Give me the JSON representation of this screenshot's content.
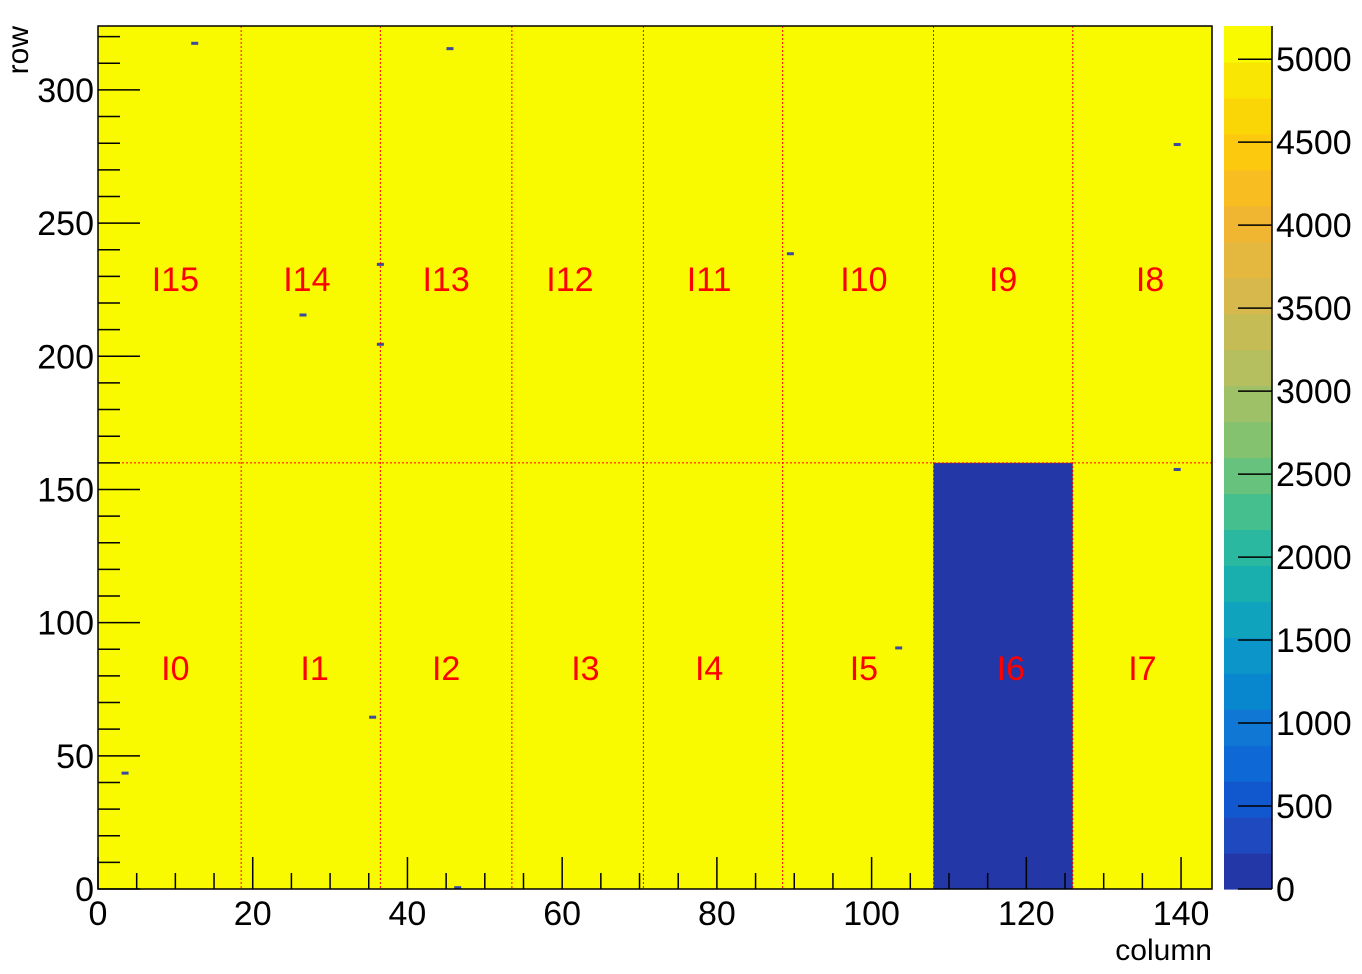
{
  "chart_data": {
    "type": "heatmap",
    "xlabel": "column",
    "ylabel": "row",
    "xlim": [
      0,
      144
    ],
    "ylim": [
      0,
      324
    ],
    "x_ticks": [
      0,
      20,
      40,
      60,
      80,
      100,
      120,
      140
    ],
    "y_ticks": [
      0,
      50,
      100,
      150,
      200,
      250,
      300
    ],
    "colorbar": {
      "range": [
        0,
        5200
      ],
      "ticks": [
        0,
        500,
        1000,
        1500,
        2000,
        2500,
        3000,
        3500,
        4000,
        4500,
        5000
      ],
      "palette": "kBird"
    },
    "background_value": 5150,
    "background_color": "#f9f900",
    "low_region": {
      "label": "I6",
      "x": [
        108,
        126
      ],
      "y": [
        0,
        160
      ],
      "value": 0,
      "color": "#2437a6"
    },
    "grid_line_color": "#ff0000",
    "column_boundaries": [
      18.5,
      36.5,
      53.5,
      70.5,
      88.5,
      108,
      126
    ],
    "row_boundary": 160,
    "regions": [
      {
        "label": "I0",
        "x": 10,
        "y": 83
      },
      {
        "label": "I1",
        "x": 28,
        "y": 83
      },
      {
        "label": "I2",
        "x": 45,
        "y": 83
      },
      {
        "label": "I3",
        "x": 63,
        "y": 83
      },
      {
        "label": "I4",
        "x": 79,
        "y": 83
      },
      {
        "label": "I5",
        "x": 99,
        "y": 83
      },
      {
        "label": "I6",
        "x": 118,
        "y": 83
      },
      {
        "label": "I7",
        "x": 135,
        "y": 83
      },
      {
        "label": "I15",
        "x": 10,
        "y": 229
      },
      {
        "label": "I14",
        "x": 27,
        "y": 229
      },
      {
        "label": "I13",
        "x": 45,
        "y": 229
      },
      {
        "label": "I12",
        "x": 61,
        "y": 229
      },
      {
        "label": "I11",
        "x": 79,
        "y": 229
      },
      {
        "label": "I10",
        "x": 99,
        "y": 229
      },
      {
        "label": "I9",
        "x": 117,
        "y": 229
      },
      {
        "label": "I8",
        "x": 136,
        "y": 229
      }
    ],
    "hot_pixels": [
      {
        "x": 12.5,
        "y": 317.5
      },
      {
        "x": 45.5,
        "y": 315.5
      },
      {
        "x": 139.5,
        "y": 279.5
      },
      {
        "x": 89.5,
        "y": 238.5
      },
      {
        "x": 36.5,
        "y": 234.5
      },
      {
        "x": 26.5,
        "y": 215.5
      },
      {
        "x": 36.5,
        "y": 204.5
      },
      {
        "x": 139.5,
        "y": 157.5
      },
      {
        "x": 103.5,
        "y": 90.5
      },
      {
        "x": 35.5,
        "y": 64.5
      },
      {
        "x": 3.5,
        "y": 43.5
      },
      {
        "x": 46.5,
        "y": 0.5
      }
    ]
  }
}
